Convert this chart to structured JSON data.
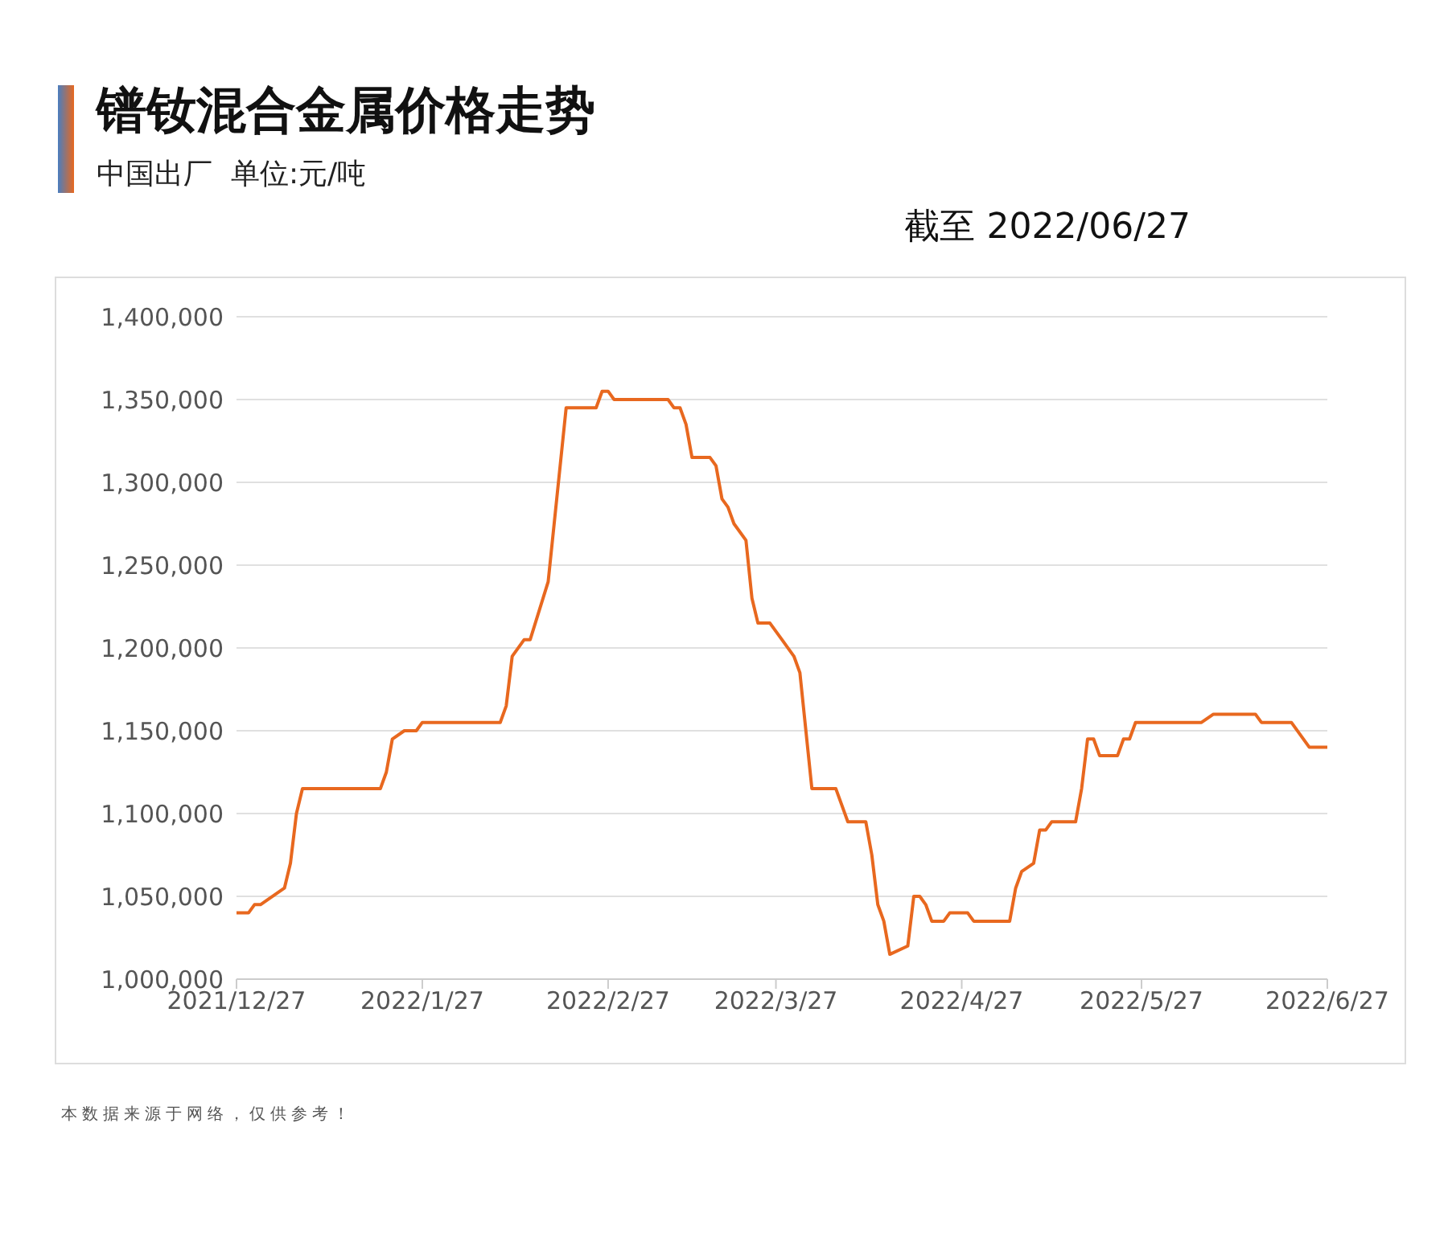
{
  "chart_data": {
    "type": "line",
    "title": "镨钕混合金属价格走势",
    "subtitle": "中国出厂  单位:元/吨",
    "annotations": [
      "截至 2022/06/27",
      "本数据来源于网络，仅供参考！"
    ],
    "x": [
      "2021-12-27",
      "2021-12-29",
      "2021-12-30",
      "2021-12-31",
      "2022-01-04",
      "2022-01-05",
      "2022-01-06",
      "2022-01-07",
      "2022-01-20",
      "2022-01-21",
      "2022-01-22",
      "2022-01-24",
      "2022-01-26",
      "2022-01-27",
      "2022-02-09",
      "2022-02-10",
      "2022-02-11",
      "2022-02-13",
      "2022-02-14",
      "2022-02-17",
      "2022-02-20",
      "2022-02-25",
      "2022-02-26",
      "2022-02-27",
      "2022-02-28",
      "2022-03-09",
      "2022-03-10",
      "2022-03-11",
      "2022-03-12",
      "2022-03-13",
      "2022-03-16",
      "2022-03-17",
      "2022-03-18",
      "2022-03-19",
      "2022-03-20",
      "2022-03-22",
      "2022-03-23",
      "2022-03-24",
      "2022-03-26",
      "2022-03-28",
      "2022-03-30",
      "2022-03-31",
      "2022-04-02",
      "2022-04-06",
      "2022-04-08",
      "2022-04-11",
      "2022-04-12",
      "2022-04-13",
      "2022-04-14",
      "2022-04-15",
      "2022-04-18",
      "2022-04-19",
      "2022-04-20",
      "2022-04-21",
      "2022-04-22",
      "2022-04-24",
      "2022-04-25",
      "2022-04-28",
      "2022-04-29",
      "2022-05-05",
      "2022-05-06",
      "2022-05-07",
      "2022-05-09",
      "2022-05-10",
      "2022-05-11",
      "2022-05-12",
      "2022-05-16",
      "2022-05-17",
      "2022-05-18",
      "2022-05-19",
      "2022-05-20",
      "2022-05-23",
      "2022-05-24",
      "2022-05-25",
      "2022-05-26",
      "2022-06-06",
      "2022-06-08",
      "2022-06-15",
      "2022-06-16",
      "2022-06-21",
      "2022-06-24",
      "2022-06-27"
    ],
    "series": [
      {
        "color": "#e8681f",
        "values": [
          1040000,
          1040000,
          1045000,
          1045000,
          1055000,
          1070000,
          1100000,
          1115000,
          1115000,
          1125000,
          1145000,
          1150000,
          1150000,
          1155000,
          1155000,
          1165000,
          1195000,
          1205000,
          1205000,
          1240000,
          1345000,
          1345000,
          1355000,
          1355000,
          1350000,
          1350000,
          1345000,
          1345000,
          1335000,
          1315000,
          1315000,
          1310000,
          1290000,
          1285000,
          1275000,
          1265000,
          1230000,
          1215000,
          1215000,
          1205000,
          1195000,
          1185000,
          1115000,
          1115000,
          1095000,
          1095000,
          1075000,
          1045000,
          1035000,
          1015000,
          1020000,
          1050000,
          1050000,
          1045000,
          1035000,
          1035000,
          1040000,
          1040000,
          1035000,
          1035000,
          1055000,
          1065000,
          1070000,
          1090000,
          1090000,
          1095000,
          1095000,
          1115000,
          1145000,
          1145000,
          1135000,
          1135000,
          1145000,
          1145000,
          1155000,
          1155000,
          1160000,
          1160000,
          1155000,
          1155000,
          1140000,
          1140000
        ]
      }
    ],
    "xlim": [
      "2021-12-27",
      "2022-06-27"
    ],
    "xticks": [
      {
        "value": "2021-12-27",
        "label": "2021/12/27"
      },
      {
        "value": "2022-01-27",
        "label": "2022/1/27"
      },
      {
        "value": "2022-02-27",
        "label": "2022/2/27"
      },
      {
        "value": "2022-03-27",
        "label": "2022/3/27"
      },
      {
        "value": "2022-04-27",
        "label": "2022/4/27"
      },
      {
        "value": "2022-05-27",
        "label": "2022/5/27"
      },
      {
        "value": "2022-06-27",
        "label": "2022/6/27"
      }
    ],
    "ylim": [
      1000000,
      1400000
    ],
    "yticks": [
      {
        "value": 1000000,
        "label": "1,000,000"
      },
      {
        "value": 1050000,
        "label": "1,050,000"
      },
      {
        "value": 1100000,
        "label": "1,100,000"
      },
      {
        "value": 1150000,
        "label": "1,150,000"
      },
      {
        "value": 1200000,
        "label": "1,200,000"
      },
      {
        "value": 1250000,
        "label": "1,250,000"
      },
      {
        "value": 1300000,
        "label": "1,300,000"
      },
      {
        "value": 1350000,
        "label": "1,350,000"
      },
      {
        "value": 1400000,
        "label": "1,400,000"
      }
    ],
    "grid": "y",
    "legend": false,
    "marker": "none",
    "line_style": "solid"
  }
}
